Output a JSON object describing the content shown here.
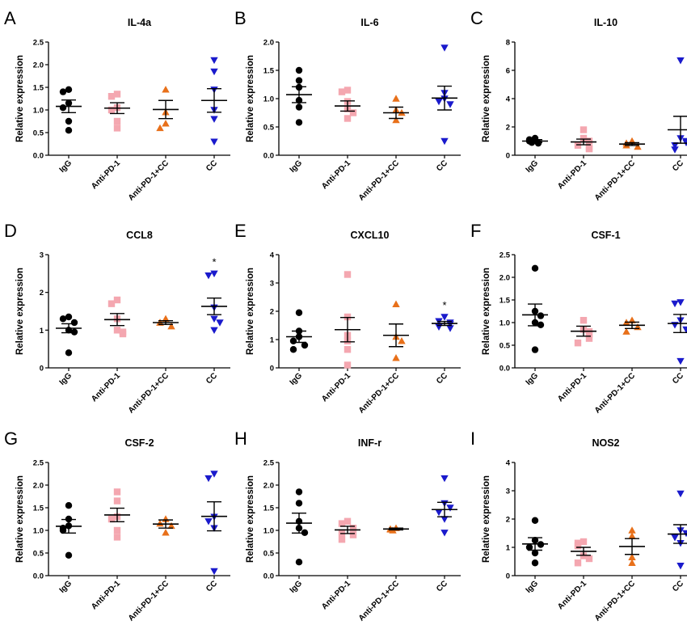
{
  "figure": {
    "categories": [
      "IgG",
      "Anti-PD-1",
      "Anti-PD-1+CC",
      "CC"
    ],
    "group_colors": [
      "#000000",
      "#f4a7b0",
      "#e8701a",
      "#1a1acc"
    ],
    "group_markers": [
      "circle",
      "square",
      "triangle-up",
      "triangle-down"
    ]
  },
  "chart_data": [
    {
      "panel": "A",
      "type": "scatter",
      "title": "IL-4a",
      "ylabel": "Relative expression",
      "ylim": [
        0,
        2.5
      ],
      "yticks": [
        0,
        0.5,
        1.0,
        1.5,
        2.0,
        2.5
      ],
      "ytick_labels": [
        "0.0",
        "0.5",
        "1.0",
        "1.5",
        "2.0",
        "2.5"
      ],
      "groups": [
        {
          "category": "IgG",
          "points": [
            1.45,
            1.4,
            1.15,
            1.05,
            0.75,
            0.55
          ],
          "mean": 1.08,
          "sem": 0.14
        },
        {
          "category": "Anti-PD-1",
          "points": [
            1.35,
            1.3,
            1.05,
            1.0,
            0.75,
            0.6
          ],
          "mean": 1.04,
          "sem": 0.12
        },
        {
          "category": "Anti-PD-1+CC",
          "points": [
            1.45,
            0.95,
            0.7,
            0.6
          ],
          "mean": 1.01,
          "sem": 0.2
        },
        {
          "category": "CC",
          "points": [
            2.1,
            1.85,
            1.45,
            1.0,
            0.8,
            0.3
          ],
          "mean": 1.21,
          "sem": 0.26
        }
      ],
      "annotations": []
    },
    {
      "panel": "B",
      "type": "scatter",
      "title": "IL-6",
      "ylabel": "Relative expression",
      "ylim": [
        0,
        2.0
      ],
      "yticks": [
        0,
        0.5,
        1.0,
        1.5,
        2.0
      ],
      "ytick_labels": [
        "0.0",
        "0.5",
        "1.0",
        "1.5",
        "2.0"
      ],
      "groups": [
        {
          "category": "IgG",
          "points": [
            1.5,
            1.32,
            1.2,
            0.97,
            0.85,
            0.58
          ],
          "mean": 1.07,
          "sem": 0.14
        },
        {
          "category": "Anti-PD-1",
          "points": [
            1.15,
            1.12,
            0.95,
            0.82,
            0.75,
            0.65
          ],
          "mean": 0.87,
          "sem": 0.09
        },
        {
          "category": "Anti-PD-1+CC",
          "points": [
            1.0,
            0.8,
            0.75,
            0.62
          ],
          "mean": 0.75,
          "sem": 0.1
        },
        {
          "category": "CC",
          "points": [
            1.9,
            1.1,
            1.0,
            0.95,
            0.9,
            0.25
          ],
          "mean": 1.01,
          "sem": 0.21
        }
      ],
      "annotations": []
    },
    {
      "panel": "C",
      "type": "scatter",
      "title": "IL-10",
      "ylabel": "Relative expression",
      "ylim": [
        0,
        8
      ],
      "yticks": [
        0,
        2,
        4,
        6,
        8
      ],
      "ytick_labels": [
        "0",
        "2",
        "4",
        "6",
        "8"
      ],
      "groups": [
        {
          "category": "IgG",
          "points": [
            1.2,
            1.1,
            1.0,
            0.95,
            0.9,
            0.85
          ],
          "mean": 1.0,
          "sem": 0.1
        },
        {
          "category": "Anti-PD-1",
          "points": [
            1.8,
            1.2,
            1.0,
            0.7,
            0.5,
            0.45
          ],
          "mean": 0.94,
          "sem": 0.2
        },
        {
          "category": "Anti-PD-1+CC",
          "points": [
            1.0,
            0.85,
            0.7,
            0.6
          ],
          "mean": 0.79,
          "sem": 0.1
        },
        {
          "category": "CC",
          "points": [
            6.7,
            1.2,
            1.0,
            0.9,
            0.7,
            0.4
          ],
          "mean": 1.8,
          "sem": 0.95
        }
      ],
      "annotations": []
    },
    {
      "panel": "D",
      "type": "scatter",
      "title": "CCL8",
      "ylabel": "Relative expression",
      "ylim": [
        0,
        3
      ],
      "yticks": [
        0,
        1,
        2,
        3
      ],
      "ytick_labels": [
        "0",
        "1",
        "2",
        "3"
      ],
      "groups": [
        {
          "category": "IgG",
          "points": [
            1.35,
            1.3,
            1.2,
            1.0,
            0.95,
            0.4
          ],
          "mean": 1.05,
          "sem": 0.12
        },
        {
          "category": "Anti-PD-1",
          "points": [
            1.8,
            1.7,
            1.3,
            1.0,
            0.95,
            0.9
          ],
          "mean": 1.28,
          "sem": 0.16
        },
        {
          "category": "Anti-PD-1+CC",
          "points": [
            1.3,
            1.2,
            1.2,
            1.1
          ],
          "mean": 1.2,
          "sem": 0.05
        },
        {
          "category": "CC",
          "points": [
            2.5,
            2.45,
            1.6,
            1.3,
            1.2,
            1.0
          ],
          "mean": 1.63,
          "sem": 0.22
        }
      ],
      "annotations": [
        {
          "category": "CC",
          "text": "*"
        }
      ]
    },
    {
      "panel": "E",
      "type": "scatter",
      "title": "CXCL10",
      "ylabel": "Relative expression",
      "ylim": [
        0,
        4
      ],
      "yticks": [
        0,
        1,
        2,
        3,
        4
      ],
      "ytick_labels": [
        "0",
        "1",
        "2",
        "3",
        "4"
      ],
      "groups": [
        {
          "category": "IgG",
          "points": [
            1.95,
            1.3,
            1.1,
            0.95,
            0.8,
            0.65
          ],
          "mean": 1.1,
          "sem": 0.2
        },
        {
          "category": "Anti-PD-1",
          "points": [
            3.3,
            1.8,
            1.15,
            0.95,
            0.65,
            0.1
          ],
          "mean": 1.35,
          "sem": 0.43
        },
        {
          "category": "Anti-PD-1+CC",
          "points": [
            2.25,
            1.1,
            0.95,
            0.35
          ],
          "mean": 1.15,
          "sem": 0.4
        },
        {
          "category": "CC",
          "points": [
            1.8,
            1.65,
            1.6,
            1.55,
            1.45,
            1.4
          ],
          "mean": 1.57,
          "sem": 0.07
        }
      ],
      "annotations": [
        {
          "category": "CC",
          "text": "*"
        }
      ]
    },
    {
      "panel": "F",
      "type": "scatter",
      "title": "CSF-1",
      "ylabel": "Relative expression",
      "ylim": [
        0,
        2.5
      ],
      "yticks": [
        0,
        0.5,
        1.0,
        1.5,
        2.0,
        2.5
      ],
      "ytick_labels": [
        "0.0",
        "0.5",
        "1.0",
        "1.5",
        "2.0",
        "2.5"
      ],
      "groups": [
        {
          "category": "IgG",
          "points": [
            2.2,
            1.25,
            1.15,
            1.0,
            0.95,
            0.4
          ],
          "mean": 1.17,
          "sem": 0.24
        },
        {
          "category": "Anti-PD-1",
          "points": [
            1.05,
            0.85,
            0.8,
            0.75,
            0.65,
            0.55
          ],
          "mean": 0.81,
          "sem": 0.11
        },
        {
          "category": "Anti-PD-1+CC",
          "points": [
            1.05,
            1.0,
            0.9,
            0.8
          ],
          "mean": 0.94,
          "sem": 0.07
        },
        {
          "category": "CC",
          "points": [
            1.45,
            1.42,
            1.05,
            0.95,
            0.85,
            0.15
          ],
          "mean": 0.98,
          "sem": 0.2
        }
      ],
      "annotations": []
    },
    {
      "panel": "G",
      "type": "scatter",
      "title": "CSF-2",
      "ylabel": "Relative expression",
      "ylim": [
        0,
        2.5
      ],
      "yticks": [
        0,
        0.5,
        1.0,
        1.5,
        2.0,
        2.5
      ],
      "ytick_labels": [
        "0.0",
        "0.5",
        "1.0",
        "1.5",
        "2.0",
        "2.5"
      ],
      "groups": [
        {
          "category": "IgG",
          "points": [
            1.55,
            1.25,
            1.1,
            1.05,
            1.0,
            0.45
          ],
          "mean": 1.09,
          "sem": 0.15
        },
        {
          "category": "Anti-PD-1",
          "points": [
            1.85,
            1.65,
            1.3,
            1.25,
            1.0,
            0.85
          ],
          "mean": 1.34,
          "sem": 0.15
        },
        {
          "category": "Anti-PD-1+CC",
          "points": [
            1.25,
            1.15,
            1.1,
            0.95
          ],
          "mean": 1.14,
          "sem": 0.09
        },
        {
          "category": "CC",
          "points": [
            2.25,
            2.15,
            1.3,
            1.2,
            1.05,
            0.1
          ],
          "mean": 1.31,
          "sem": 0.32
        }
      ],
      "annotations": []
    },
    {
      "panel": "H",
      "type": "scatter",
      "title": "INF-r",
      "ylabel": "Relative expression",
      "ylim": [
        0,
        2.5
      ],
      "yticks": [
        0,
        0.5,
        1.0,
        1.5,
        2.0,
        2.5
      ],
      "ytick_labels": [
        "0.0",
        "0.5",
        "1.0",
        "1.5",
        "2.0",
        "2.5"
      ],
      "groups": [
        {
          "category": "IgG",
          "points": [
            1.85,
            1.6,
            1.2,
            1.05,
            0.95,
            0.3
          ],
          "mean": 1.16,
          "sem": 0.22
        },
        {
          "category": "Anti-PD-1",
          "points": [
            1.2,
            1.15,
            1.05,
            0.95,
            0.9,
            0.8
          ],
          "mean": 1.01,
          "sem": 0.08
        },
        {
          "category": "Anti-PD-1+CC",
          "points": [
            1.05,
            1.03,
            1.02,
            1.0
          ],
          "mean": 1.03,
          "sem": 0.02
        },
        {
          "category": "CC",
          "points": [
            2.15,
            1.6,
            1.5,
            1.4,
            1.25,
            0.95
          ],
          "mean": 1.46,
          "sem": 0.16
        }
      ],
      "annotations": []
    },
    {
      "panel": "I",
      "type": "scatter",
      "title": "NOS2",
      "ylabel": "Relative expression",
      "ylim": [
        0,
        4
      ],
      "yticks": [
        0,
        1,
        2,
        3,
        4
      ],
      "ytick_labels": [
        "0",
        "1",
        "2",
        "3",
        "4"
      ],
      "groups": [
        {
          "category": "IgG",
          "points": [
            1.95,
            1.25,
            1.1,
            1.0,
            0.8,
            0.45
          ],
          "mean": 1.12,
          "sem": 0.22
        },
        {
          "category": "Anti-PD-1",
          "points": [
            1.2,
            1.15,
            1.05,
            0.7,
            0.6,
            0.45
          ],
          "mean": 0.86,
          "sem": 0.14
        },
        {
          "category": "Anti-PD-1+CC",
          "points": [
            1.6,
            1.4,
            0.65,
            0.45
          ],
          "mean": 1.03,
          "sem": 0.28
        },
        {
          "category": "CC",
          "points": [
            2.9,
            1.6,
            1.5,
            1.35,
            1.15,
            0.35
          ],
          "mean": 1.47,
          "sem": 0.33
        }
      ],
      "annotations": []
    }
  ]
}
